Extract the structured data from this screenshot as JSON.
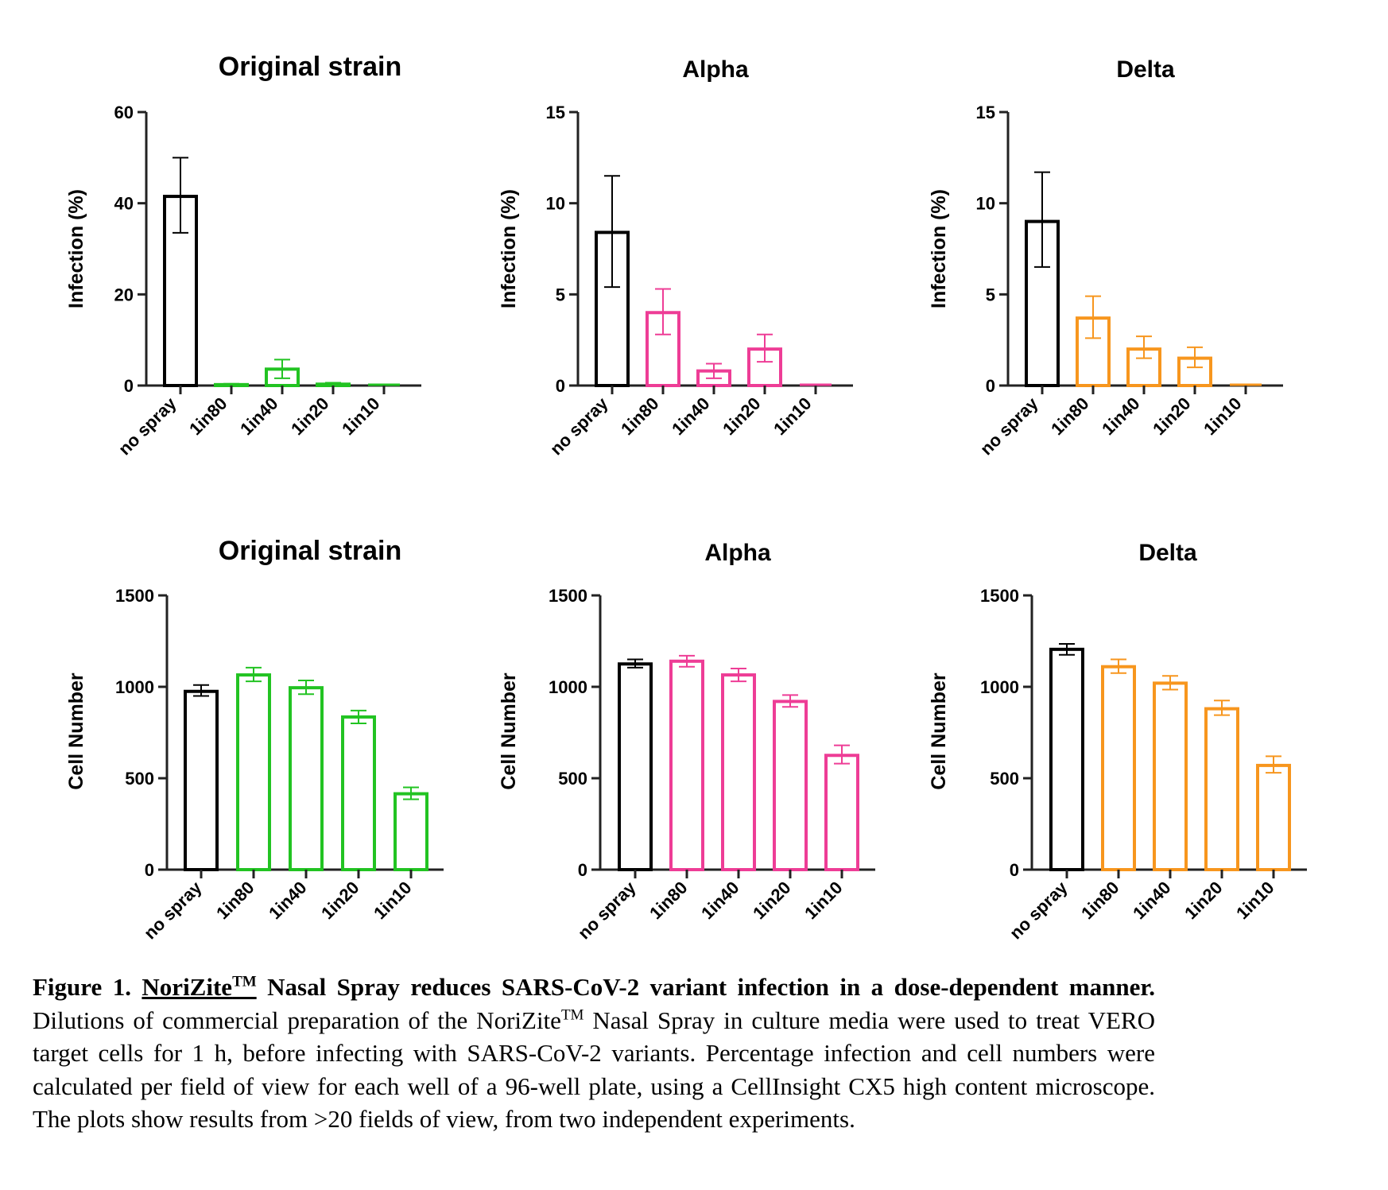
{
  "colors": {
    "no_spray": "#000000",
    "original": "#22c322",
    "alpha": "#ee3d96",
    "delta": "#f7961e"
  },
  "chart_data": [
    {
      "type": "bar",
      "title": "Original strain",
      "ylabel": "Infection (%)",
      "ylim": [
        0,
        60
      ],
      "yticks": [
        0,
        20,
        40,
        60
      ],
      "categories": [
        "no spray",
        "1in80",
        "1in40",
        "1in20",
        "1in10"
      ],
      "values": [
        41.5,
        0.2,
        3.6,
        0.3,
        0
      ],
      "error_low": [
        33.5,
        0,
        1.6,
        0,
        0
      ],
      "error_high": [
        50,
        0.4,
        5.7,
        0.6,
        0
      ],
      "color_keys": [
        "no_spray",
        "original",
        "original",
        "original",
        "original"
      ]
    },
    {
      "type": "bar",
      "title": "Alpha",
      "ylabel": "Infection (%)",
      "ylim": [
        0,
        15
      ],
      "yticks": [
        0,
        5,
        10,
        15
      ],
      "categories": [
        "no spray",
        "1in80",
        "1in40",
        "1in20",
        "1in10"
      ],
      "values": [
        8.4,
        4.0,
        0.8,
        2.0,
        0
      ],
      "error_low": [
        5.4,
        2.8,
        0.4,
        1.3,
        0
      ],
      "error_high": [
        11.5,
        5.3,
        1.2,
        2.8,
        0
      ],
      "color_keys": [
        "no_spray",
        "alpha",
        "alpha",
        "alpha",
        "alpha"
      ]
    },
    {
      "type": "bar",
      "title": "Delta",
      "ylabel": "Infection (%)",
      "ylim": [
        0,
        15
      ],
      "yticks": [
        0,
        5,
        10,
        15
      ],
      "categories": [
        "no spray",
        "1in80",
        "1in40",
        "1in20",
        "1in10"
      ],
      "values": [
        9.0,
        3.7,
        2.0,
        1.5,
        0
      ],
      "error_low": [
        6.5,
        2.6,
        1.5,
        1.0,
        0
      ],
      "error_high": [
        11.7,
        4.9,
        2.7,
        2.1,
        0
      ],
      "color_keys": [
        "no_spray",
        "delta",
        "delta",
        "delta",
        "delta"
      ]
    },
    {
      "type": "bar",
      "title": "Original strain",
      "ylabel": "Cell Number",
      "ylim": [
        0,
        1500
      ],
      "yticks": [
        0,
        500,
        1000,
        1500
      ],
      "categories": [
        "no spray",
        "1in80",
        "1in40",
        "1in20",
        "1in10"
      ],
      "values": [
        975,
        1065,
        995,
        835,
        415
      ],
      "error_low": [
        950,
        1030,
        960,
        800,
        385
      ],
      "error_high": [
        1010,
        1105,
        1035,
        870,
        450
      ],
      "color_keys": [
        "no_spray",
        "original",
        "original",
        "original",
        "original"
      ]
    },
    {
      "type": "bar",
      "title": "Alpha",
      "ylabel": "Cell Number",
      "ylim": [
        0,
        1500
      ],
      "yticks": [
        0,
        500,
        1000,
        1500
      ],
      "categories": [
        "no spray",
        "1in80",
        "1in40",
        "1in20",
        "1in10"
      ],
      "values": [
        1125,
        1140,
        1065,
        920,
        625
      ],
      "error_low": [
        1105,
        1110,
        1030,
        890,
        580
      ],
      "error_high": [
        1150,
        1170,
        1100,
        955,
        680
      ],
      "color_keys": [
        "no_spray",
        "alpha",
        "alpha",
        "alpha",
        "alpha"
      ]
    },
    {
      "type": "bar",
      "title": "Delta",
      "ylabel": "Cell Number",
      "ylim": [
        0,
        1500
      ],
      "yticks": [
        0,
        500,
        1000,
        1500
      ],
      "categories": [
        "no spray",
        "1in80",
        "1in40",
        "1in20",
        "1in10"
      ],
      "values": [
        1205,
        1110,
        1020,
        880,
        570
      ],
      "error_low": [
        1175,
        1075,
        985,
        845,
        530
      ],
      "error_high": [
        1235,
        1150,
        1060,
        925,
        620
      ],
      "color_keys": [
        "no_spray",
        "delta",
        "delta",
        "delta",
        "delta"
      ]
    }
  ],
  "caption": {
    "figure_label": "Figure 1.",
    "brand": "NoriZite",
    "brand_tm": "TM",
    "bold_title": "Nasal Spray reduces SARS-CoV-2 variant infection in a dose-dependent manner.",
    "text_a": "Dilutions of commercial preparation of the NoriZite",
    "tm": "TM",
    "text_b": "Nasal Spray in culture media were used to treat VERO target cells for 1 h, before infecting with SARS-CoV-2 variants. Percentage infection and cell numbers were calculated per field of view for each well of a 96-well plate, using a CellInsight CX5 high content microscope. The plots show results from >20 fields of view, from two independent experiments."
  }
}
